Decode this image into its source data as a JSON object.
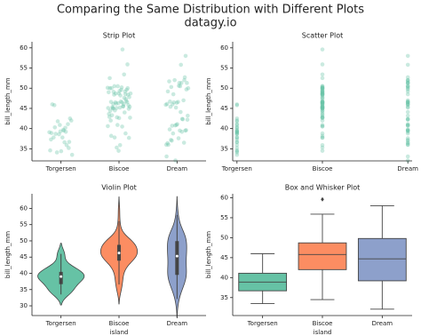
{
  "title": "Comparing the Same Distribution with Different Plots",
  "subtitle": "datagy.io",
  "chart_data": [
    {
      "type": "strip",
      "title": "Strip Plot",
      "ylabel": "bill_length_mm",
      "color": "#66c2a5",
      "categories": [
        "Torgersen",
        "Biscoe",
        "Dream"
      ],
      "values": [
        [
          39.1,
          39.5,
          40.3,
          36.7,
          39.3,
          38.9,
          39.2,
          34.1,
          42.0,
          37.8,
          37.8,
          41.1,
          38.6,
          34.6,
          36.6,
          38.7,
          42.5,
          34.4,
          46.0,
          35.9,
          41.8,
          33.5,
          39.7,
          45.8,
          35.2,
          40.9,
          37.3,
          40.2
        ],
        [
          37.8,
          37.7,
          35.9,
          38.2,
          38.8,
          35.3,
          40.6,
          40.5,
          46.1,
          50.0,
          48.7,
          50.0,
          47.6,
          46.5,
          45.4,
          46.7,
          43.3,
          46.8,
          40.9,
          49.0,
          45.5,
          48.4,
          45.8,
          49.3,
          42.0,
          49.2,
          46.2,
          48.7,
          50.2,
          45.1,
          46.5,
          46.3,
          42.9,
          46.1,
          44.5,
          47.8,
          48.2,
          50.0,
          47.3,
          42.8,
          45.1,
          59.6,
          49.1,
          48.4,
          42.6,
          44.4,
          44.0,
          48.7,
          42.7,
          49.6,
          45.3,
          49.6,
          50.5,
          43.6,
          45.5,
          50.5,
          44.9,
          45.2,
          46.6,
          48.5,
          45.1,
          50.1,
          46.5,
          45.0,
          55.9,
          34.5,
          52.5,
          53.4
        ],
        [
          39.5,
          37.2,
          39.5,
          40.9,
          36.4,
          39.2,
          38.8,
          42.2,
          37.6,
          39.8,
          36.5,
          40.8,
          36.0,
          44.1,
          37.0,
          39.6,
          41.1,
          36.0,
          42.3,
          46.5,
          50.0,
          51.3,
          45.4,
          52.7,
          45.2,
          46.1,
          51.3,
          46.0,
          51.3,
          46.6,
          51.7,
          47.0,
          52.0,
          45.9,
          50.5,
          50.3,
          58.0,
          46.4,
          49.2,
          42.4,
          48.5,
          43.2,
          50.6,
          46.7,
          52.0,
          32.1,
          33.1,
          55.8,
          40.7,
          49.7
        ]
      ],
      "ylim": [
        32,
        61.5
      ],
      "yticks": [
        35,
        40,
        45,
        50,
        55,
        60
      ]
    },
    {
      "type": "scatter",
      "title": "Scatter Plot",
      "ylabel": "bill_length_mm",
      "color": "#66c2a5",
      "categories": [
        "Torgersen",
        "Biscoe",
        "Dream"
      ],
      "xlim": [
        -0.05,
        2.05
      ],
      "values": [
        [
          39.1,
          39.5,
          40.3,
          36.7,
          39.3,
          38.9,
          39.2,
          34.1,
          42.0,
          37.8,
          37.8,
          41.1,
          38.6,
          34.6,
          36.6,
          38.7,
          42.5,
          34.4,
          46.0,
          35.9,
          41.8,
          33.5,
          39.7,
          45.8,
          35.2,
          40.9,
          37.3,
          40.2
        ],
        [
          37.8,
          37.7,
          35.9,
          38.2,
          38.8,
          35.3,
          40.6,
          40.5,
          46.1,
          50.0,
          48.7,
          50.0,
          47.6,
          46.5,
          45.4,
          46.7,
          43.3,
          46.8,
          40.9,
          49.0,
          45.5,
          48.4,
          45.8,
          49.3,
          42.0,
          49.2,
          46.2,
          48.7,
          50.2,
          45.1,
          46.5,
          46.3,
          42.9,
          46.1,
          44.5,
          47.8,
          48.2,
          50.0,
          47.3,
          42.8,
          45.1,
          59.6,
          49.1,
          48.4,
          42.6,
          44.4,
          44.0,
          48.7,
          42.7,
          49.6,
          45.3,
          49.6,
          50.5,
          43.6,
          45.5,
          50.5,
          44.9,
          45.2,
          46.6,
          48.5,
          45.1,
          50.1,
          46.5,
          45.0,
          55.9,
          34.5,
          52.5,
          53.4
        ],
        [
          39.5,
          37.2,
          39.5,
          40.9,
          36.4,
          39.2,
          38.8,
          42.2,
          37.6,
          39.8,
          36.5,
          40.8,
          36.0,
          44.1,
          37.0,
          39.6,
          41.1,
          36.0,
          42.3,
          46.5,
          50.0,
          51.3,
          45.4,
          52.7,
          45.2,
          46.1,
          51.3,
          46.0,
          51.3,
          46.6,
          51.7,
          47.0,
          52.0,
          45.9,
          50.5,
          50.3,
          58.0,
          46.4,
          49.2,
          42.4,
          48.5,
          43.2,
          50.6,
          46.7,
          52.0,
          32.1,
          33.1,
          55.8,
          40.7,
          49.7
        ]
      ],
      "ylim": [
        32,
        61.5
      ],
      "yticks": [
        35,
        40,
        45,
        50,
        55,
        60
      ]
    },
    {
      "type": "violin",
      "title": "Violin Plot",
      "xlabel": "island",
      "ylabel": "bill_length_mm",
      "categories": [
        "Torgersen",
        "Biscoe",
        "Dream"
      ],
      "colors": [
        "#66c2a5",
        "#fc8d62",
        "#8da0cb"
      ],
      "values": [
        [
          39.1,
          39.5,
          40.3,
          36.7,
          39.3,
          38.9,
          39.2,
          34.1,
          42.0,
          37.8,
          37.8,
          41.1,
          38.6,
          34.6,
          36.6,
          38.7,
          42.5,
          34.4,
          46.0,
          35.9,
          41.8,
          33.5,
          39.7,
          45.8,
          35.2,
          40.9,
          37.3,
          40.2
        ],
        [
          37.8,
          37.7,
          35.9,
          38.2,
          38.8,
          35.3,
          40.6,
          40.5,
          46.1,
          50.0,
          48.7,
          50.0,
          47.6,
          46.5,
          45.4,
          46.7,
          43.3,
          46.8,
          40.9,
          49.0,
          45.5,
          48.4,
          45.8,
          49.3,
          42.0,
          49.2,
          46.2,
          48.7,
          50.2,
          45.1,
          46.5,
          46.3,
          42.9,
          46.1,
          44.5,
          47.8,
          48.2,
          50.0,
          47.3,
          42.8,
          45.1,
          59.6,
          49.1,
          48.4,
          42.6,
          44.4,
          44.0,
          48.7,
          42.7,
          49.6,
          45.3,
          49.6,
          50.5,
          43.6,
          45.5,
          50.5,
          44.9,
          45.2,
          46.6,
          48.5,
          45.1,
          50.1,
          46.5,
          45.0,
          55.9,
          34.5,
          52.5,
          53.4
        ],
        [
          39.5,
          37.2,
          39.5,
          40.9,
          36.4,
          39.2,
          38.8,
          42.2,
          37.6,
          39.8,
          36.5,
          40.8,
          36.0,
          44.1,
          37.0,
          39.6,
          41.1,
          36.0,
          42.3,
          46.5,
          50.0,
          51.3,
          45.4,
          52.7,
          45.2,
          46.1,
          51.3,
          46.0,
          51.3,
          46.6,
          51.7,
          47.0,
          52.0,
          45.9,
          50.5,
          50.3,
          58.0,
          46.4,
          49.2,
          42.4,
          48.5,
          43.2,
          50.6,
          46.7,
          52.0,
          32.1,
          33.1,
          55.8,
          40.7,
          49.7
        ]
      ],
      "ylim": [
        27,
        64.5
      ],
      "yticks": [
        30,
        35,
        40,
        45,
        50,
        55,
        60
      ]
    },
    {
      "type": "box",
      "title": "Box and Whisker Plot",
      "xlabel": "island",
      "ylabel": "bill_length_mm",
      "categories": [
        "Torgersen",
        "Biscoe",
        "Dream"
      ],
      "colors": [
        "#66c2a5",
        "#fc8d62",
        "#8da0cb"
      ],
      "boxes": [
        {
          "min": 33.5,
          "q1": 36.7,
          "median": 38.9,
          "q3": 41.1,
          "max": 46.0,
          "outliers": []
        },
        {
          "min": 34.5,
          "q1": 42.0,
          "median": 45.8,
          "q3": 48.7,
          "max": 55.9,
          "outliers": [
            59.6
          ]
        },
        {
          "min": 32.1,
          "q1": 39.2,
          "median": 44.7,
          "q3": 49.8,
          "max": 58.0,
          "outliers": []
        }
      ],
      "ylim": [
        30.5,
        61
      ],
      "yticks": [
        35,
        40,
        45,
        50,
        55,
        60
      ]
    }
  ]
}
